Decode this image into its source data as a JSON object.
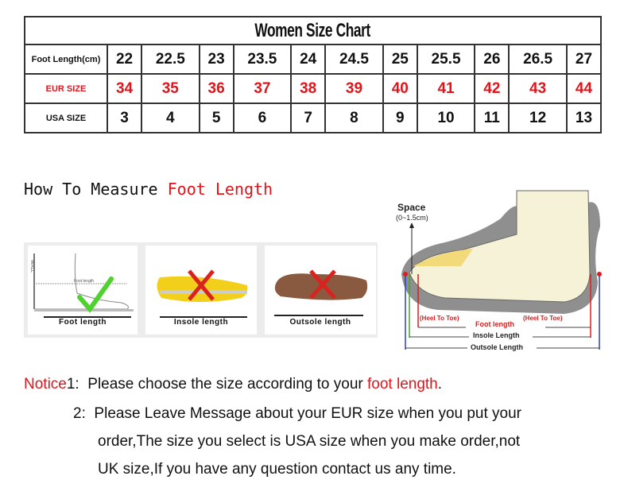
{
  "chart": {
    "title": "Women Size Chart",
    "rows": [
      {
        "label": "Foot Length(cm)",
        "values": [
          "22",
          "22.5",
          "23",
          "23.5",
          "24",
          "24.5",
          "25",
          "25.5",
          "26",
          "26.5",
          "27"
        ]
      },
      {
        "label": "EUR SIZE",
        "values": [
          "34",
          "35",
          "36",
          "37",
          "38",
          "39",
          "40",
          "41",
          "42",
          "43",
          "44"
        ]
      },
      {
        "label": "USA SIZE",
        "values": [
          "3",
          "4",
          "5",
          "6",
          "7",
          "8",
          "9",
          "10",
          "11",
          "12",
          "13"
        ]
      }
    ],
    "accent": "#e0151b"
  },
  "measure": {
    "heading_prefix": "How To Measure ",
    "heading_highlight": "Foot Length",
    "panels": [
      {
        "caption": "Foot length",
        "mark": "check-icon",
        "wall": "WALL",
        "inner": "Foot length"
      },
      {
        "caption": "Insole length",
        "mark": "cross-icon"
      },
      {
        "caption": "Outsole length",
        "mark": "cross-icon"
      }
    ]
  },
  "diagram": {
    "space": "Space",
    "space_range": "(0~1.5cm)",
    "heel_to_toe": "(Heel To Toe)",
    "foot_length": "Foot length",
    "insole": "Insole Length",
    "outsole": "Outsole Length"
  },
  "notice": {
    "label": "Notice",
    "n1": "1:",
    "line1_prefix": "Please choose the size according to your ",
    "line1_highlight": "foot length",
    "line1_suffix": ".",
    "n2": "2:",
    "line2": "Please Leave Message about your EUR size when you put your",
    "line3": "order,The size you select is USA size when you make order,not",
    "line4": "UK size,If you have any question  contact us any time."
  }
}
